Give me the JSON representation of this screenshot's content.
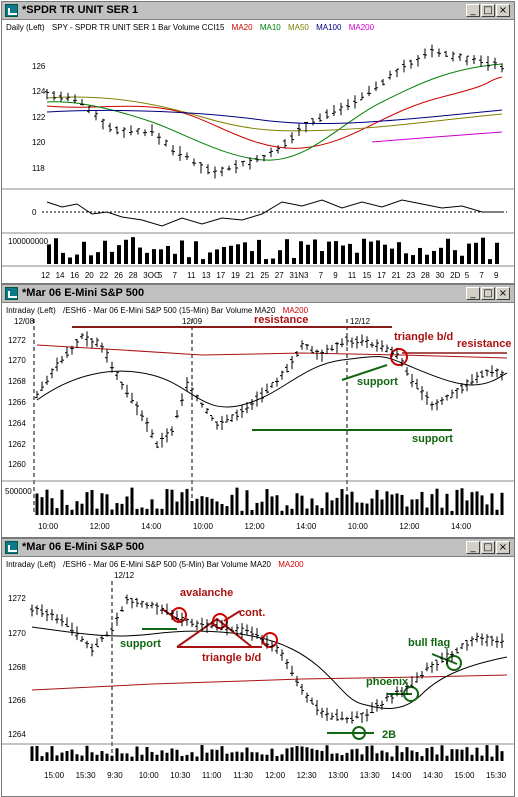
{
  "windows": [
    {
      "title": "*SPDR TR UNIT SER 1",
      "legend": [
        "Daily  (Left)",
        "SPY - SPDR TR UNIT SER 1  Bar  Volume  CCI15",
        "MA20",
        "MA10",
        "MA50",
        "MA100",
        "MA200"
      ],
      "y_ticks": [
        "126",
        "124",
        "122",
        "120",
        "118"
      ],
      "indicator_tick": "0",
      "volume_tick": "100000000",
      "x_ticks": [
        "12",
        "14",
        "16",
        "20",
        "22",
        "26",
        "28",
        "3OC",
        "5",
        "7",
        "11",
        "13",
        "17",
        "19",
        "21",
        "25",
        "27",
        "31N",
        "3",
        "7",
        "9",
        "11",
        "15",
        "17",
        "21",
        "23",
        "28",
        "30",
        "2D",
        "5",
        "7",
        "9"
      ]
    },
    {
      "title": "*Mar 06  E-Mini S&P 500",
      "legend": [
        "Intraday  (Left)",
        "/ESH6 - Mar 06  E-Mini S&P 500  (15-Min)  Bar  Volume  MA20",
        "MA200"
      ],
      "date_labels": [
        "12/08",
        "12/09",
        "12/12"
      ],
      "y_ticks": [
        "1272",
        "1270",
        "1268",
        "1266",
        "1264",
        "1262",
        "1260"
      ],
      "volume_tick": "500000",
      "x_ticks": [
        "10:00",
        "12:00",
        "14:00",
        "10:00",
        "12:00",
        "14:00",
        "10:00",
        "12:00",
        "14:00"
      ],
      "annotations": {
        "resistance_left": "resistance",
        "triangle": "triangle b/d",
        "resistance_right": "resistance",
        "support_upper": "support",
        "support_lower": "support"
      }
    },
    {
      "title": "*Mar 06  E-Mini S&P 500",
      "legend": [
        "Intraday  (Left)",
        "/ESH6 - Mar 06  E-Mini S&P 500  (5-Min)  Bar  Volume  MA20",
        "MA200"
      ],
      "date_labels": [
        "12/12"
      ],
      "y_ticks": [
        "1272",
        "1270",
        "1268",
        "1266",
        "1264"
      ],
      "x_ticks": [
        "15:00",
        "15:30",
        "9:30",
        "10:00",
        "10:30",
        "11:00",
        "11:30",
        "12:00",
        "12:30",
        "13:00",
        "13:30",
        "14:00",
        "14:30",
        "15:00",
        "15:30"
      ],
      "annotations": {
        "avalanche": "avalanche",
        "cont": "cont.",
        "support": "support",
        "triangle": "triangle b/d",
        "bull_flag": "bull flag",
        "phoenix": "phoenix",
        "two_b": "2B"
      }
    }
  ],
  "window_buttons": {
    "minimize": "_",
    "maximize": "□",
    "close": "×"
  },
  "colors": {
    "ma20": "#cc0000",
    "ma10": "#008000",
    "ma50": "#808000",
    "ma100": "#000080",
    "ma200": "#cc00cc",
    "annot_red": "#aa1111",
    "annot_green": "#116611"
  }
}
